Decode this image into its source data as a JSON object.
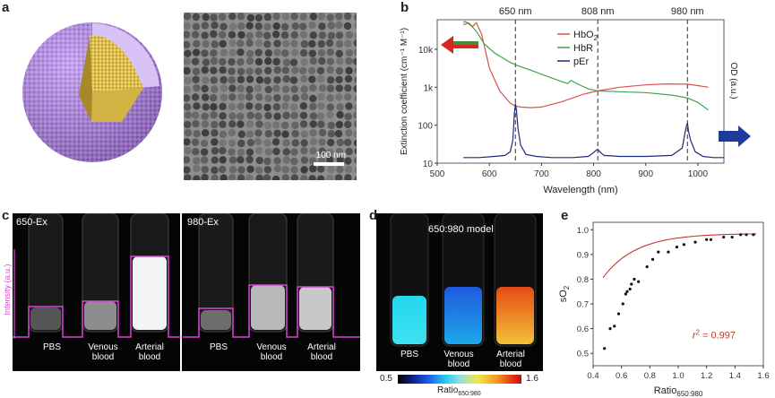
{
  "panels": {
    "a": {
      "letter": "a",
      "scale_bar": "100 nm"
    },
    "b": {
      "letter": "b"
    },
    "c": {
      "letter": "c",
      "ex_left": "650-Ex",
      "ex_right": "980-Ex",
      "intensity_label": "Intensity (a.u.)",
      "tubes": [
        "PBS",
        "Venous\nblood",
        "Arterial\nblood"
      ]
    },
    "d": {
      "letter": "d",
      "title": "650:980 model",
      "tubes": [
        "PBS",
        "Venous\nblood",
        "Arterial\nblood"
      ],
      "cbar_min": "0.5",
      "cbar_max": "1.6",
      "cbar_label_main": "Ratio",
      "cbar_label_sub": "650:980"
    },
    "e": {
      "letter": "e"
    }
  },
  "colors": {
    "HbO2": "#d9534f",
    "HbR": "#3fa34d",
    "pEr": "#1f2a7a",
    "magenta": "#e040d8",
    "fit": "#c0392b",
    "arrow_red": "#d6281c",
    "arrow_green": "#2e9e3e",
    "arrow_blue": "#1e3a9a",
    "sphere": "#b07ee8",
    "core": "#e6c64a"
  },
  "chart_data": [
    {
      "type": "line",
      "panel": "b",
      "xlabel": "Wavelength (nm)",
      "ylabel": "Extinction coefficient (cm⁻¹ M⁻¹)",
      "ylabel_right": "OD (a.u.)",
      "xlim": [
        500,
        1050
      ],
      "ylim": [
        10,
        60000
      ],
      "yscale": "log",
      "xticks": [
        500,
        600,
        700,
        800,
        900,
        1000
      ],
      "yticks": [
        {
          "v": 10,
          "t": "10"
        },
        {
          "v": 100,
          "t": "100"
        },
        {
          "v": 1000,
          "t": "1k"
        },
        {
          "v": 10000,
          "t": "10k"
        }
      ],
      "vlines": [
        {
          "x": 650,
          "label": "650 nm"
        },
        {
          "x": 808,
          "label": "808 nm"
        },
        {
          "x": 980,
          "label": "980 nm"
        }
      ],
      "series": [
        {
          "name": "HbO2",
          "sub": "2",
          "color_key": "HbO2",
          "x": [
            550,
            560,
            568,
            575,
            585,
            600,
            620,
            640,
            650,
            660,
            680,
            700,
            740,
            780,
            808,
            850,
            900,
            940,
            980,
            1000,
            1020
          ],
          "y": [
            44000,
            50000,
            40000,
            50000,
            25000,
            3200,
            800,
            380,
            320,
            300,
            290,
            300,
            420,
            650,
            800,
            1000,
            1150,
            1220,
            1200,
            1100,
            1000
          ]
        },
        {
          "name": "HbR",
          "color_key": "HbR",
          "x": [
            550,
            555,
            565,
            575,
            590,
            610,
            640,
            650,
            680,
            700,
            730,
            750,
            757,
            770,
            790,
            808,
            850,
            900,
            950,
            980,
            1000,
            1020
          ],
          "y": [
            52000,
            53000,
            42000,
            30000,
            14000,
            8000,
            4500,
            3900,
            2800,
            2200,
            1550,
            1250,
            1500,
            1200,
            900,
            800,
            760,
            720,
            620,
            520,
            400,
            250
          ]
        },
        {
          "name": "pEr",
          "color_key": "pEr",
          "x": [
            550,
            580,
            610,
            630,
            640,
            645,
            648,
            650,
            652,
            655,
            660,
            670,
            690,
            720,
            760,
            790,
            800,
            805,
            808,
            812,
            820,
            850,
            900,
            950,
            970,
            975,
            978,
            980,
            982,
            986,
            995,
            1010,
            1030,
            1050
          ],
          "y": [
            14,
            14,
            15,
            16,
            20,
            40,
            200,
            370,
            250,
            80,
            30,
            17,
            15,
            14,
            14,
            15,
            19,
            22,
            23,
            20,
            16,
            15,
            15,
            16,
            25,
            60,
            95,
            115,
            70,
            40,
            20,
            15,
            14,
            14
          ]
        }
      ]
    },
    {
      "type": "scatter",
      "panel": "e",
      "xlabel": "Ratio",
      "xlabel_sub": "650:980",
      "ylabel": "sO",
      "ylabel_sub": "2",
      "xlim": [
        0.4,
        1.6
      ],
      "ylim": [
        0.45,
        1.03
      ],
      "xticks": [
        0.4,
        0.6,
        0.8,
        1.0,
        1.2,
        1.4,
        1.6
      ],
      "yticks": [
        0.5,
        0.6,
        0.7,
        0.8,
        0.9,
        1.0
      ],
      "annotation": "= 0.997",
      "annotation_var": "r",
      "annotation_sup": "2",
      "points": {
        "x": [
          0.48,
          0.52,
          0.55,
          0.58,
          0.61,
          0.63,
          0.64,
          0.66,
          0.67,
          0.69,
          0.72,
          0.78,
          0.82,
          0.86,
          0.93,
          0.99,
          1.04,
          1.12,
          1.2,
          1.23,
          1.32,
          1.38,
          1.44,
          1.48,
          1.53
        ],
        "y": [
          0.52,
          0.6,
          0.61,
          0.66,
          0.7,
          0.74,
          0.75,
          0.76,
          0.78,
          0.8,
          0.79,
          0.85,
          0.88,
          0.91,
          0.91,
          0.93,
          0.94,
          0.95,
          0.96,
          0.96,
          0.97,
          0.97,
          0.98,
          0.98,
          0.98
        ]
      },
      "fit": {
        "asymptote": 0.985,
        "amplitude": 1.35,
        "k": 4.3
      }
    }
  ]
}
